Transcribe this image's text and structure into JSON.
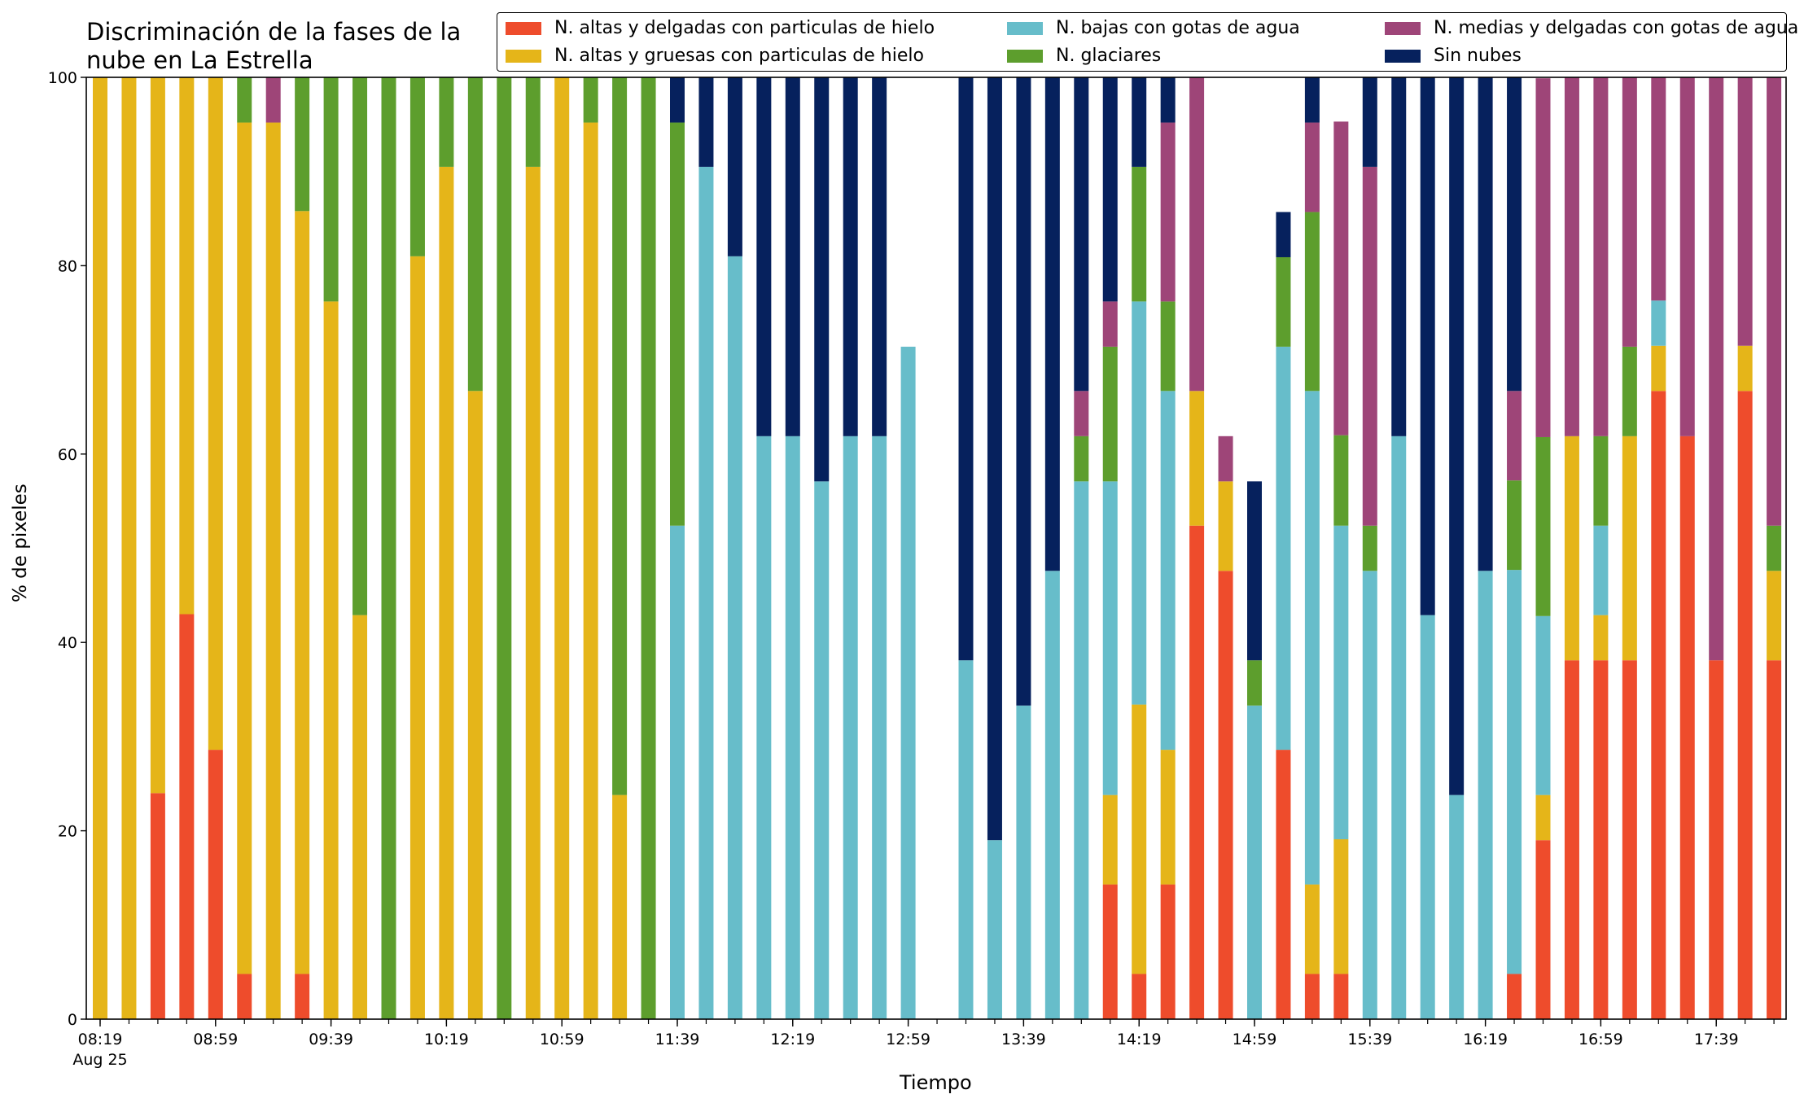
{
  "chart_data": {
    "type": "bar",
    "stacked": true,
    "title": "Discriminación de la fases de la\nnube en La Estrella",
    "xlabel": "Tiempo",
    "ylabel": "% de pixeles",
    "ylim": [
      0,
      100
    ],
    "yticks": [
      "0",
      "20",
      "40",
      "60",
      "80",
      "100"
    ],
    "legend_position": "top",
    "grid": false,
    "xtick_labels": [
      "08:19",
      "08:59",
      "09:39",
      "10:19",
      "10:59",
      "11:39",
      "12:19",
      "12:59",
      "13:39",
      "14:19",
      "14:59",
      "15:39",
      "16:19",
      "16:59",
      "17:39"
    ],
    "xtick_sublabel": "Aug 25",
    "series": [
      {
        "name": "N. altas y delgadas con particulas de hielo",
        "color": "#ee4c2c",
        "values": [
          0,
          0,
          24,
          43,
          28.6,
          4.8,
          0,
          4.8,
          0,
          0,
          0,
          0,
          0,
          0,
          0,
          0,
          0,
          0,
          0,
          0,
          0,
          0,
          0,
          0,
          0,
          0,
          0,
          0,
          0,
          0,
          0,
          0,
          0,
          0,
          0,
          14.3,
          4.8,
          14.3,
          52.4,
          47.6,
          0,
          28.6,
          4.8,
          4.8,
          0,
          0,
          0,
          0,
          0,
          4.8,
          19,
          38.1,
          38.1,
          38.1,
          66.7,
          61.9,
          38.1,
          66.7,
          38.1
        ]
      },
      {
        "name": "N. altas y gruesas con particulas de hielo",
        "color": "#e5b519",
        "values": [
          100,
          100,
          76,
          57,
          71.4,
          90.4,
          95.2,
          81,
          76.2,
          42.9,
          0,
          81,
          90.5,
          66.7,
          0,
          90.5,
          100,
          95.2,
          23.8,
          0,
          0,
          0,
          0,
          0,
          0,
          0,
          0,
          0,
          0,
          0,
          0,
          0,
          0,
          0,
          0,
          9.5,
          28.6,
          14.3,
          14.3,
          9.5,
          0,
          0,
          9.5,
          14.3,
          0,
          0,
          0,
          0,
          0,
          0,
          4.8,
          23.8,
          4.8,
          23.8,
          4.8,
          0,
          0,
          4.8,
          9.5
        ]
      },
      {
        "name": "N. bajas con gotas de agua",
        "color": "#67bdca",
        "values": [
          0,
          0,
          0,
          0,
          0,
          0,
          0,
          0,
          0,
          0,
          0,
          0,
          0,
          0,
          0,
          0,
          0,
          0,
          0,
          0,
          52.4,
          90.5,
          81,
          61.9,
          61.9,
          57.1,
          61.9,
          61.9,
          71.4,
          0,
          38.1,
          19,
          33.3,
          47.6,
          57.1,
          33.3,
          42.8,
          38.1,
          0,
          0,
          33.3,
          42.8,
          52.4,
          33.3,
          47.6,
          61.9,
          42.9,
          23.8,
          47.6,
          42.9,
          19,
          0,
          9.5,
          0,
          4.8,
          0,
          0,
          0,
          0
        ]
      },
      {
        "name": "N. glaciares",
        "color": "#5d9e2d",
        "values": [
          0,
          0,
          0,
          0,
          0,
          4.8,
          0,
          14.3,
          23.8,
          57.1,
          100,
          19,
          9.5,
          33.3,
          100,
          9.5,
          0,
          4.8,
          76.2,
          100,
          42.8,
          0,
          0,
          0,
          0,
          0,
          0,
          0,
          0,
          0,
          0,
          0,
          0,
          0,
          4.8,
          14.3,
          14.3,
          9.5,
          0,
          0,
          4.8,
          9.5,
          19,
          9.6,
          4.8,
          0,
          0,
          0,
          0,
          9.5,
          19,
          0,
          9.5,
          9.5,
          0,
          0,
          0,
          0,
          4.8
        ]
      },
      {
        "name": "N. medias y delgadas con gotas de agua",
        "color": "#9e4578",
        "values": [
          0,
          0,
          0,
          0,
          0,
          0,
          4.8,
          0,
          0,
          0,
          0,
          0,
          0,
          0,
          0,
          0,
          0,
          0,
          0,
          0,
          0,
          0,
          0,
          0,
          0,
          0,
          0,
          0,
          0,
          0,
          0,
          0,
          0,
          0,
          4.8,
          4.8,
          0,
          19,
          33.3,
          4.8,
          0,
          0,
          9.5,
          33.3,
          38.1,
          0,
          0,
          0,
          0,
          9.5,
          38.1,
          38.1,
          38.1,
          28.6,
          23.8,
          38.1,
          61.9,
          28.6,
          47.6
        ]
      },
      {
        "name": "Sin nubes",
        "color": "#06215d",
        "values": [
          0,
          0,
          0,
          0,
          0,
          0,
          0,
          0,
          0,
          0,
          0,
          0,
          0,
          0,
          0,
          0,
          0,
          0,
          0,
          0,
          4.8,
          9.5,
          19,
          38.1,
          38.1,
          42.9,
          38.1,
          38.1,
          0,
          0,
          61.9,
          81,
          66.7,
          52.4,
          33.3,
          23.8,
          9.5,
          4.8,
          0,
          0,
          19,
          4.8,
          4.8,
          0,
          9.5,
          38.1,
          57.1,
          76.2,
          52.4,
          33.3,
          0,
          0,
          0,
          0,
          0,
          0,
          0,
          0,
          0
        ]
      }
    ]
  }
}
